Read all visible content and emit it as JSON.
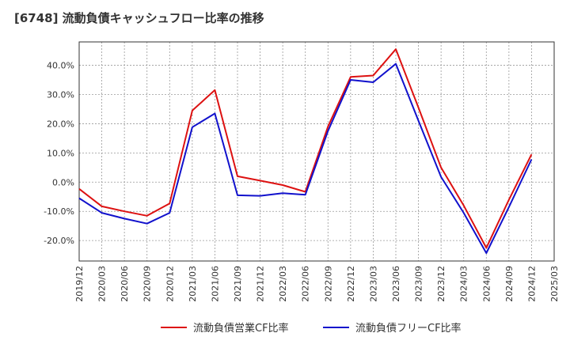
{
  "chart_data": {
    "type": "line",
    "title": "[6748]  流動負債キャッシュフロー比率の推移",
    "xlabel": "",
    "ylabel": "",
    "x": [
      "2019/12",
      "2020/03",
      "2020/06",
      "2020/09",
      "2020/12",
      "2021/03",
      "2021/06",
      "2021/09",
      "2021/12",
      "2022/03",
      "2022/06",
      "2022/09",
      "2022/12",
      "2023/03",
      "2023/06",
      "2023/09",
      "2023/12",
      "2024/03",
      "2024/06",
      "2024/09",
      "2024/12",
      "2025/03"
    ],
    "ylim": [
      -27,
      48
    ],
    "yticks": [
      -20,
      -10,
      0,
      10,
      20,
      30,
      40
    ],
    "ytick_labels": [
      "-20.0%",
      "-10.0%",
      "0.0%",
      "10.0%",
      "20.0%",
      "30.0%",
      "40.0%"
    ],
    "grid": true,
    "legend_position": "bottom",
    "series": [
      {
        "name": "流動負債営業CF比率",
        "color": "#dd1111",
        "values": [
          -2.3,
          -8.3,
          -10.0,
          -11.5,
          -7.3,
          24.5,
          31.5,
          2.0,
          0.5,
          -1.0,
          -3.3,
          19.0,
          36.0,
          36.5,
          45.5,
          25.5,
          5.0,
          -8.0,
          -22.5,
          -6.0,
          9.5,
          null
        ]
      },
      {
        "name": "流動負債フリーCF比率",
        "color": "#1111cc",
        "values": [
          -5.5,
          -10.5,
          -12.5,
          -14.2,
          -10.5,
          18.8,
          23.5,
          -4.5,
          -4.7,
          -3.8,
          -4.3,
          17.5,
          35.0,
          34.2,
          40.5,
          21.0,
          1.8,
          -10.5,
          -24.3,
          -8.5,
          7.8,
          null
        ]
      }
    ]
  }
}
